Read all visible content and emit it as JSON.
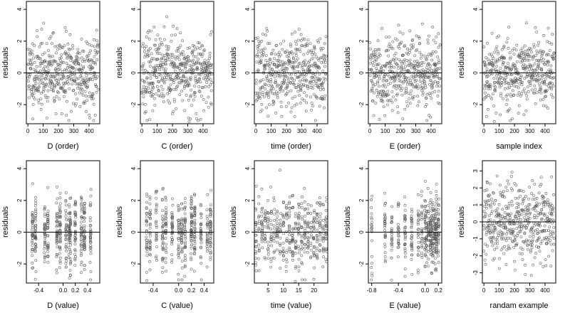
{
  "chart_data": [
    {
      "type": "scatter",
      "xlabel": "D (order)",
      "ylabel": "residuals",
      "xlim": [
        -10,
        470
      ],
      "ylim": [
        -3.2,
        4.5
      ],
      "xticks": [
        0,
        100,
        200,
        300,
        400
      ],
      "xtick_labels": [
        "0",
        "100",
        "200",
        "300",
        "400"
      ],
      "yticks": [
        -2,
        0,
        2,
        4
      ],
      "ytick_labels": [
        "-2",
        "0",
        "2",
        "4"
      ],
      "hline": 0,
      "n_points": 460,
      "x_mode": "index",
      "seed": 11
    },
    {
      "type": "scatter",
      "xlabel": "C (order)",
      "ylabel": "residuals",
      "xlim": [
        -10,
        470
      ],
      "ylim": [
        -3.2,
        4.5
      ],
      "xticks": [
        0,
        100,
        200,
        300,
        400
      ],
      "xtick_labels": [
        "0",
        "100",
        "200",
        "300",
        "400"
      ],
      "yticks": [
        -2,
        0,
        2,
        4
      ],
      "ytick_labels": [
        "-2",
        "0",
        "2",
        "4"
      ],
      "hline": 0,
      "n_points": 460,
      "x_mode": "index",
      "seed": 23
    },
    {
      "type": "scatter",
      "xlabel": "time (order)",
      "ylabel": "residuals",
      "xlim": [
        -10,
        470
      ],
      "ylim": [
        -3.2,
        4.5
      ],
      "xticks": [
        0,
        100,
        200,
        300,
        400
      ],
      "xtick_labels": [
        "0",
        "100",
        "200",
        "300",
        "400"
      ],
      "yticks": [
        -2,
        0,
        2,
        4
      ],
      "ytick_labels": [
        "-2",
        "0",
        "2",
        "4"
      ],
      "hline": 0,
      "n_points": 460,
      "x_mode": "index",
      "seed": 37
    },
    {
      "type": "scatter",
      "xlabel": "E (order)",
      "ylabel": "residuals",
      "xlim": [
        -10,
        470
      ],
      "ylim": [
        -3.2,
        4.5
      ],
      "xticks": [
        0,
        100,
        200,
        300,
        400
      ],
      "xtick_labels": [
        "0",
        "100",
        "200",
        "300",
        "400"
      ],
      "yticks": [
        -2,
        0,
        2,
        4
      ],
      "ytick_labels": [
        "-2",
        "0",
        "2",
        "4"
      ],
      "hline": 0,
      "n_points": 460,
      "x_mode": "index",
      "seed": 41
    },
    {
      "type": "scatter",
      "xlabel": "sample index",
      "ylabel": "residuals",
      "xlim": [
        -10,
        470
      ],
      "ylim": [
        -3.2,
        4.5
      ],
      "xticks": [
        0,
        100,
        200,
        300,
        400
      ],
      "xtick_labels": [
        "0",
        "100",
        "200",
        "300",
        "400"
      ],
      "yticks": [
        -2,
        0,
        2,
        4
      ],
      "ytick_labels": [
        "-2",
        "0",
        "2",
        "4"
      ],
      "hline": 0,
      "n_points": 460,
      "x_mode": "index",
      "seed": 53
    },
    {
      "type": "scatter",
      "xlabel": "D (value)",
      "ylabel": "residuals",
      "xlim": [
        -0.6,
        0.6
      ],
      "ylim": [
        -3.2,
        4.5
      ],
      "xticks": [
        -0.4,
        0.0,
        0.2,
        0.4
      ],
      "xtick_labels": [
        "-0.4",
        "0.0",
        "0.2",
        "0.4"
      ],
      "yticks": [
        -2,
        0,
        2,
        4
      ],
      "ytick_labels": [
        "-2",
        "0",
        "2",
        "4"
      ],
      "hline": 0,
      "n_points": 460,
      "x_mode": "clusters",
      "x_clusters": [
        -0.5,
        -0.45,
        -0.3,
        -0.25,
        -0.1,
        -0.05,
        0.05,
        0.1,
        0.12,
        0.2,
        0.3,
        0.35,
        0.45
      ],
      "seed": 61
    },
    {
      "type": "scatter",
      "xlabel": "C (value)",
      "ylabel": "residuals",
      "xlim": [
        -0.6,
        0.55
      ],
      "ylim": [
        -3.2,
        4.5
      ],
      "xticks": [
        -0.4,
        0.0,
        0.2,
        0.4
      ],
      "xtick_labels": [
        "-0.4",
        "0.0",
        "0.2",
        "0.4"
      ],
      "yticks": [
        -2,
        0,
        2,
        4
      ],
      "ytick_labels": [
        "-2",
        "0",
        "2",
        "4"
      ],
      "hline": 0,
      "n_points": 460,
      "x_mode": "clusters",
      "x_clusters": [
        -0.5,
        -0.45,
        -0.35,
        -0.25,
        -0.2,
        -0.1,
        0.0,
        0.05,
        0.1,
        0.2,
        0.25,
        0.35,
        0.45,
        0.5
      ],
      "seed": 71
    },
    {
      "type": "scatter",
      "xlabel": "time (value)",
      "ylabel": "residuals",
      "xlim": [
        0.5,
        24.5
      ],
      "ylim": [
        -3.2,
        4.5
      ],
      "xticks": [
        5,
        10,
        15,
        20
      ],
      "xtick_labels": [
        "5",
        "10",
        "15",
        "20"
      ],
      "yticks": [
        -2,
        0,
        2,
        4
      ],
      "ytick_labels": [
        "-2",
        "0",
        "2",
        "4"
      ],
      "hline": 0,
      "n_points": 460,
      "x_mode": "clusters",
      "x_clusters": [
        1,
        2,
        3,
        4,
        5,
        6,
        7,
        8,
        9,
        10,
        11,
        12,
        13,
        14,
        15,
        16,
        17,
        18,
        19,
        20,
        21,
        22,
        23,
        24
      ],
      "seed": 83
    },
    {
      "type": "scatter",
      "xlabel": "E (value)",
      "ylabel": "residuals",
      "xlim": [
        -0.85,
        0.25
      ],
      "ylim": [
        -3.2,
        4.5
      ],
      "xticks": [
        -0.8,
        -0.4,
        0.0,
        0.2
      ],
      "xtick_labels": [
        "-0.8",
        "-0.4",
        "0.0",
        "0.2"
      ],
      "yticks": [
        -2,
        0,
        2,
        4
      ],
      "ytick_labels": [
        "-2",
        "0",
        "2",
        "4"
      ],
      "hline": 0,
      "n_points": 460,
      "x_mode": "clusters",
      "x_clusters": [
        -0.8,
        -0.6,
        -0.5,
        -0.4,
        -0.3,
        -0.2,
        -0.1,
        -0.05,
        0.0,
        0.02,
        0.05,
        0.08,
        0.1,
        0.12,
        0.15,
        0.17,
        0.2
      ],
      "seed": 97
    },
    {
      "type": "scatter",
      "xlabel": "randam example",
      "ylabel": "residuals",
      "xlim": [
        -10,
        470
      ],
      "ylim": [
        -3.6,
        3.6
      ],
      "xticks": [
        0,
        100,
        200,
        300,
        400
      ],
      "xtick_labels": [
        "0",
        "100",
        "200",
        "300",
        "400"
      ],
      "yticks": [
        -3,
        -2,
        -1,
        0,
        1,
        2,
        3
      ],
      "ytick_labels": [
        "-3",
        "-2",
        "-1",
        "0",
        "1",
        "2",
        "3"
      ],
      "hline": 0,
      "n_points": 460,
      "x_mode": "index",
      "seed": 101
    }
  ]
}
